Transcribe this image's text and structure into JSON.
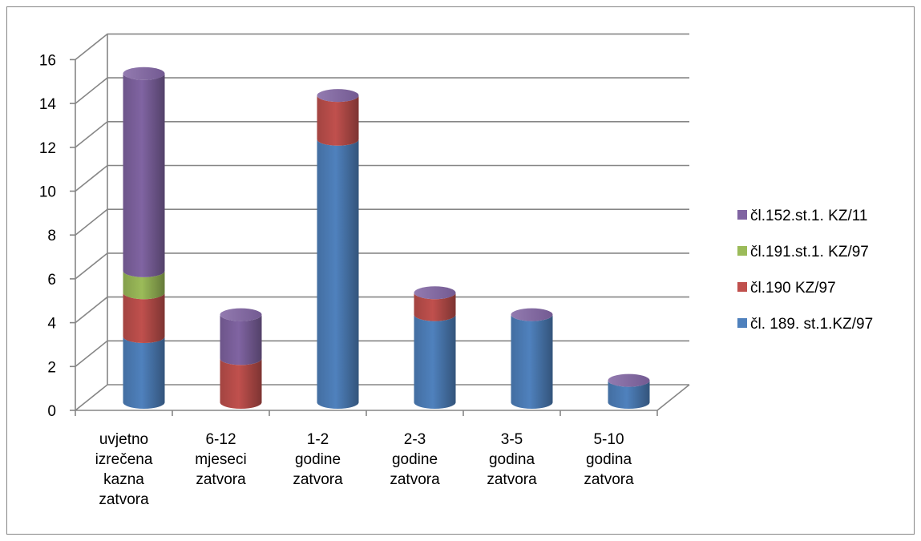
{
  "chart_data": {
    "type": "bar",
    "stacked": true,
    "three_d": true,
    "categories": [
      [
        "uvjetno",
        "izrečena",
        "kazna",
        "zatvora"
      ],
      [
        "6-12",
        "mjeseci",
        "zatvora"
      ],
      [
        "1-2",
        "godine",
        "zatvora"
      ],
      [
        "2-3",
        "godine",
        "zatvora"
      ],
      [
        "3-5",
        "godina",
        "zatvora"
      ],
      [
        "5-10",
        "godina",
        "zatvora"
      ]
    ],
    "series": [
      {
        "name": "čl. 189. st.1.KZ/97",
        "color": "#4f81bd",
        "values": [
          3,
          0,
          12,
          4,
          4,
          1
        ]
      },
      {
        "name": "čl.190 KZ/97",
        "color": "#c0504d",
        "values": [
          2,
          2,
          2,
          1,
          0,
          0
        ]
      },
      {
        "name": "čl.191.st.1. KZ/97",
        "color": "#9bbb59",
        "values": [
          1,
          0,
          0,
          0,
          0,
          0
        ]
      },
      {
        "name": "čl.152.st.1. KZ/11",
        "color": "#8064a2",
        "values": [
          9,
          2,
          0,
          0,
          0,
          0
        ]
      }
    ],
    "y_ticks": [
      "0",
      "2",
      "4",
      "6",
      "8",
      "10",
      "12",
      "14",
      "16"
    ],
    "ylim": [
      0,
      16
    ],
    "grid": true,
    "legend_position": "right",
    "legend_order": [
      3,
      2,
      1,
      0
    ]
  }
}
